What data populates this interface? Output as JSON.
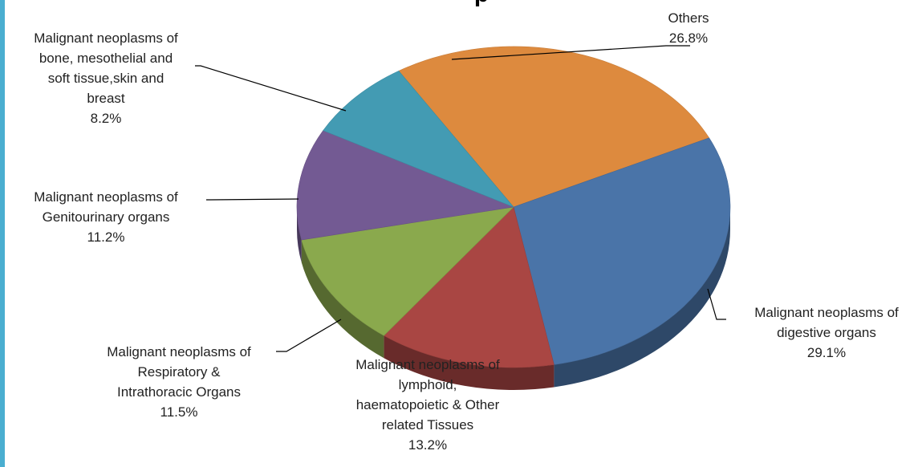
{
  "chart_data": {
    "type": "pie",
    "title_fragment": "p",
    "slices": [
      {
        "label_lines": [
          "Others"
        ],
        "value": 26.8,
        "value_label": "26.8%",
        "color": "#dd8a3e"
      },
      {
        "label_lines": [
          "Malignant neoplasms of",
          "digestive organs"
        ],
        "value": 29.1,
        "value_label": "29.1%",
        "color": "#4a74a8"
      },
      {
        "label_lines": [
          "Malignant neoplasms of",
          "lymphoid,",
          "haematopoietic & Other",
          "related Tissues"
        ],
        "value": 13.2,
        "value_label": "13.2%",
        "color": "#a94643"
      },
      {
        "label_lines": [
          "Malignant neoplasms of",
          "Respiratory &",
          "Intrathoracic Organs"
        ],
        "value": 11.5,
        "value_label": "11.5%",
        "color": "#8aa94d"
      },
      {
        "label_lines": [
          "Malignant neoplasms of",
          "Genitourinary organs"
        ],
        "value": 11.2,
        "value_label": "11.2%",
        "color": "#735a93"
      },
      {
        "label_lines": [
          "Malignant neoplasms of",
          "bone, mesothelial and",
          "soft tissue,skin and",
          "breast"
        ],
        "value": 8.2,
        "value_label": "8.2%",
        "color": "#439bb3"
      }
    ]
  }
}
